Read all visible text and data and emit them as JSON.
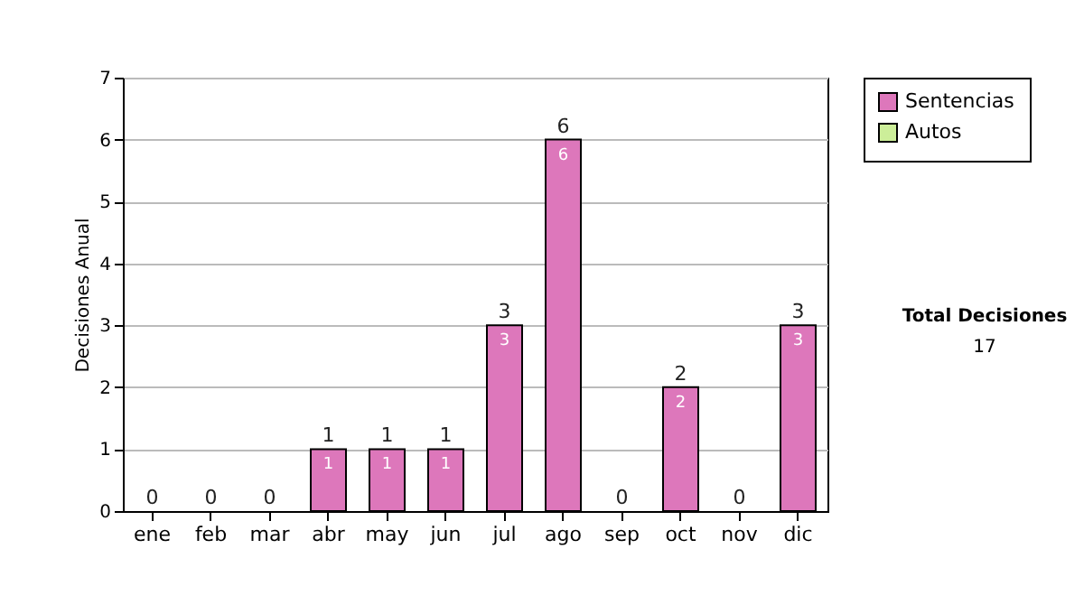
{
  "chart_data": {
    "type": "bar",
    "stacked": true,
    "ylabel": "Decisiones Anual",
    "categories": [
      "ene",
      "feb",
      "mar",
      "abr",
      "may",
      "jun",
      "jul",
      "ago",
      "sep",
      "oct",
      "nov",
      "dic"
    ],
    "series": [
      {
        "name": "Sentencias",
        "color": "#dd77bb",
        "values": [
          0,
          0,
          0,
          1,
          1,
          1,
          3,
          6,
          0,
          2,
          0,
          3
        ],
        "value_labels": [
          null,
          null,
          null,
          "1",
          "1",
          "1",
          "3",
          "6",
          null,
          "2",
          null,
          "3"
        ]
      },
      {
        "name": "Autos",
        "color": "#ccee99",
        "values": [
          0,
          0,
          0,
          0,
          0,
          0,
          0,
          0,
          0,
          0,
          0,
          0
        ]
      }
    ],
    "totals": [
      "0",
      "0",
      "0",
      "1",
      "1",
      "1",
      "3",
      "6",
      "0",
      "2",
      "0",
      "3"
    ],
    "ylim": [
      0,
      7
    ],
    "yticks": [
      0,
      1,
      2,
      3,
      4,
      5,
      6,
      7
    ],
    "grid": "y",
    "legend": "right",
    "annotations": [
      "Total Decisiones",
      "17"
    ]
  }
}
